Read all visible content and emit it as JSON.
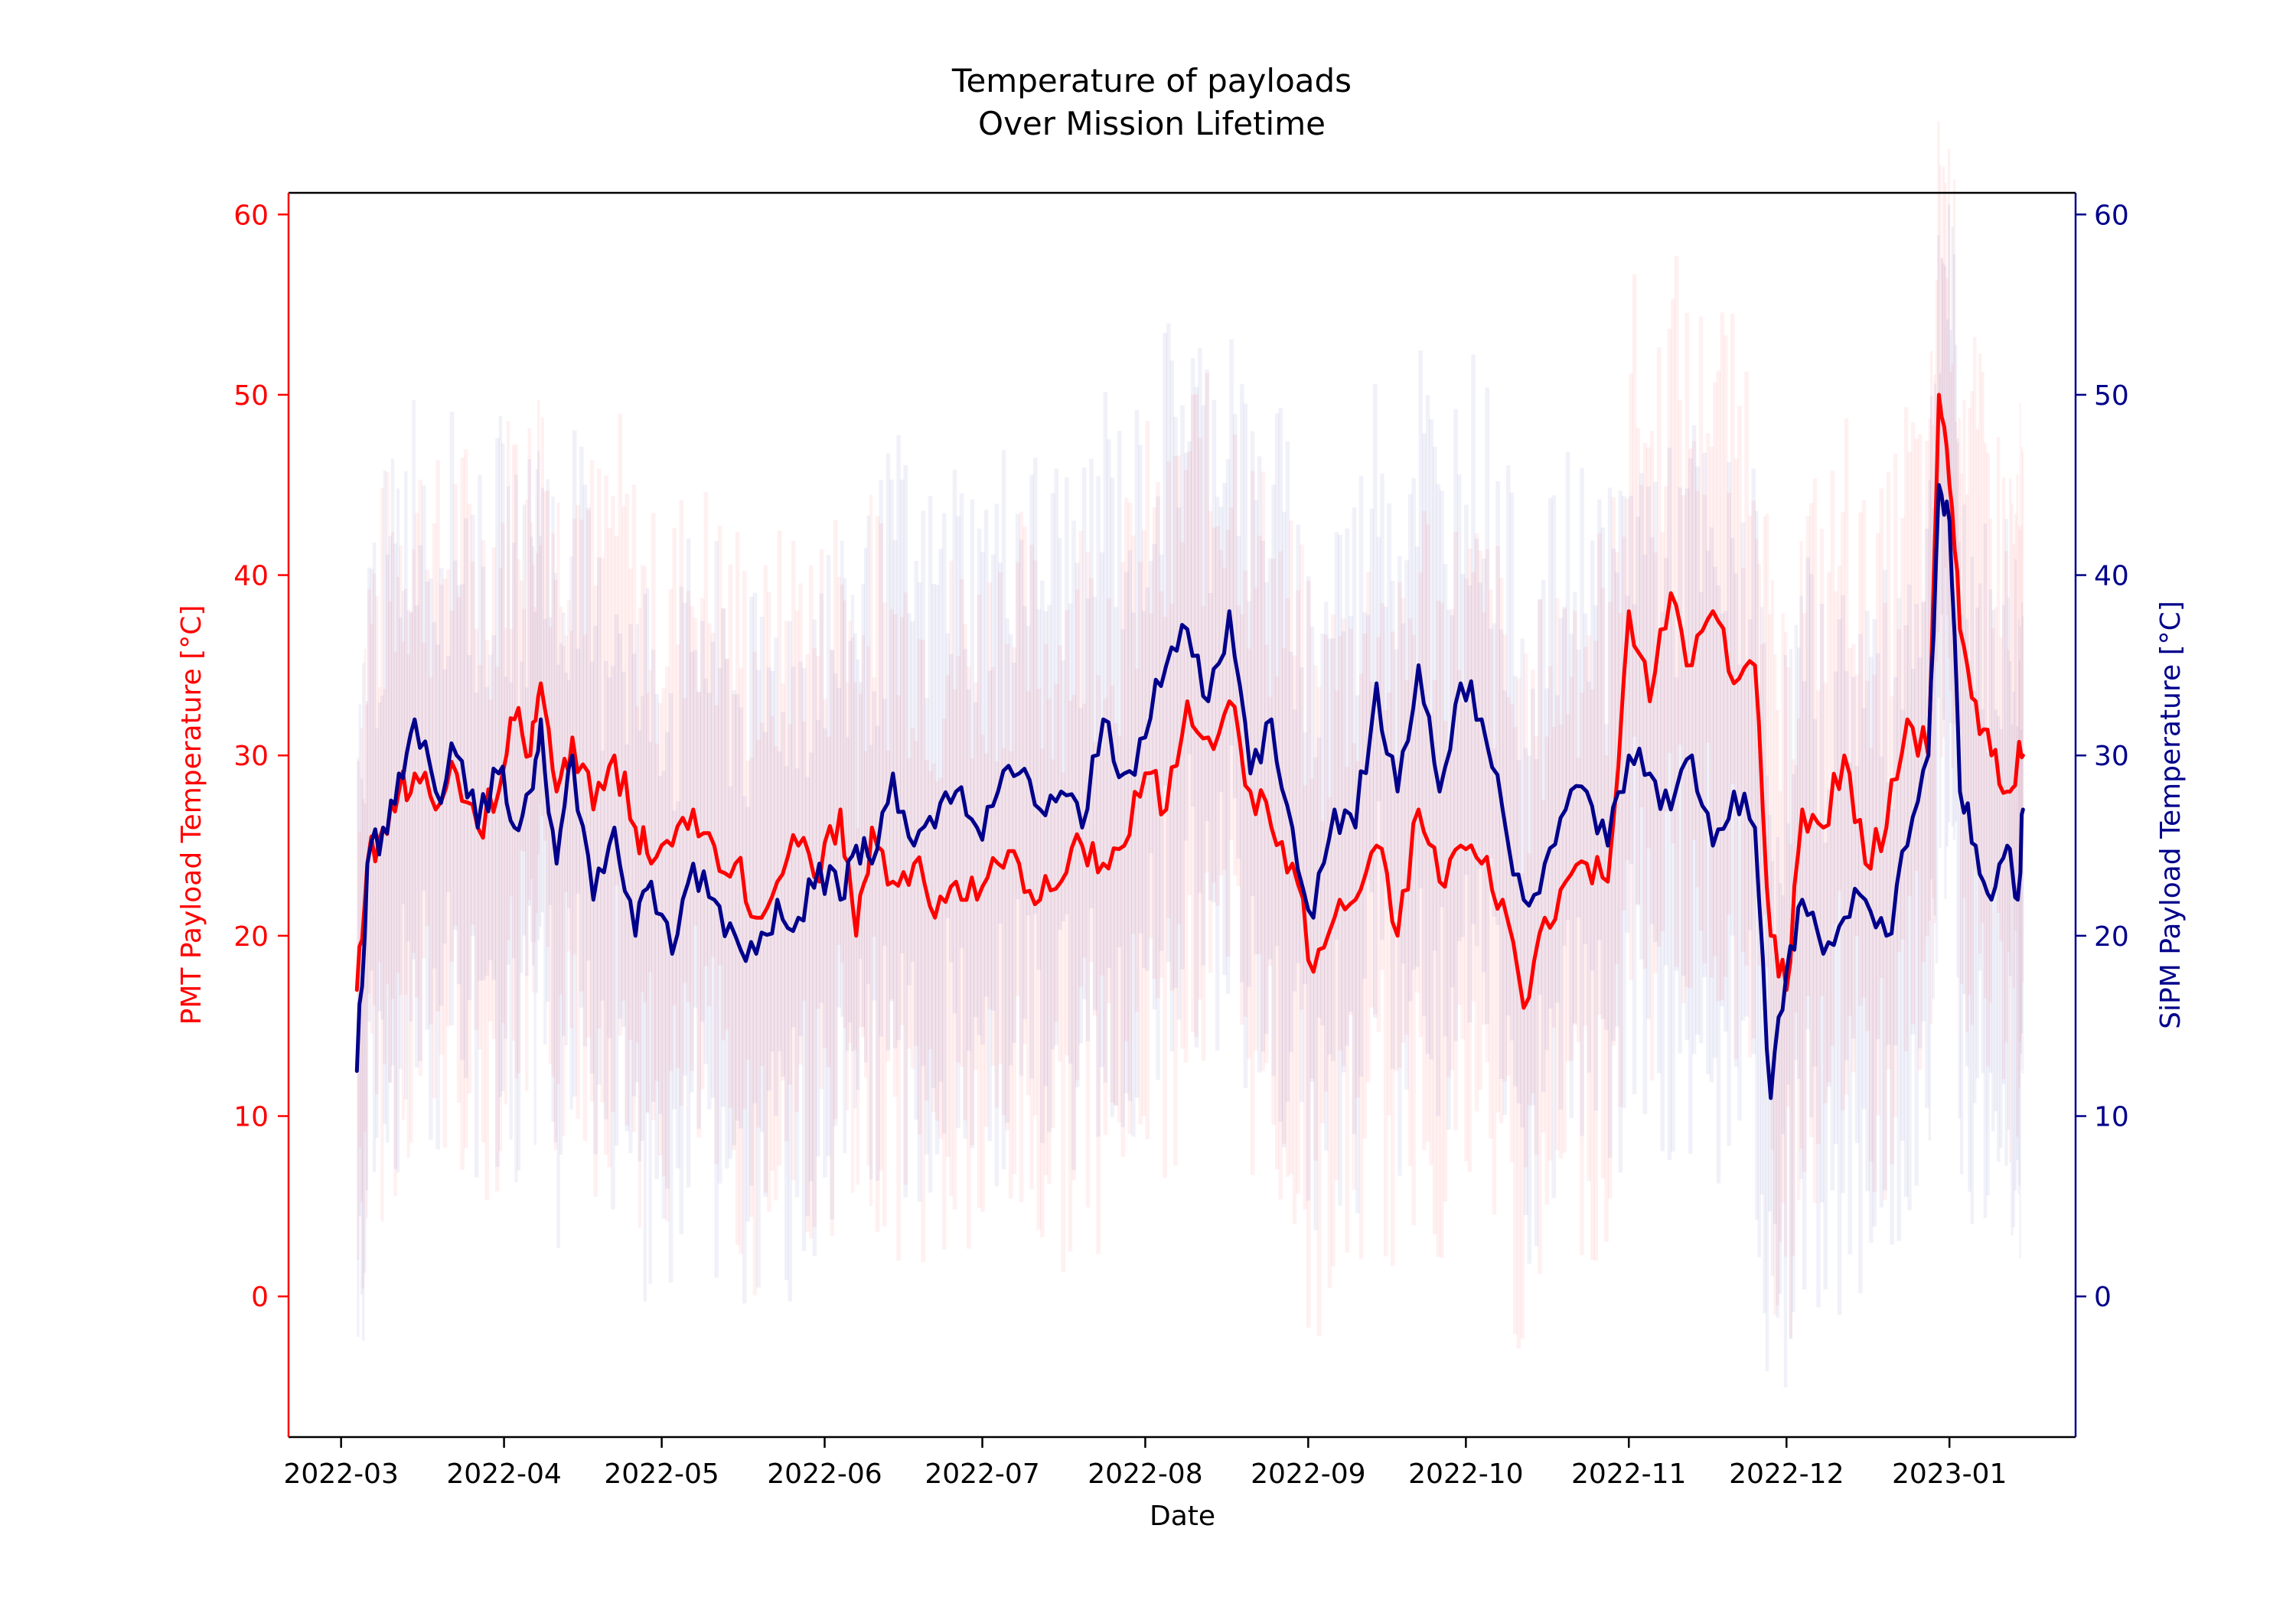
{
  "chart_data": {
    "type": "line",
    "title": "Temperature of payloads",
    "subtitle": "Over Mission Lifetime",
    "xlabel": "Date",
    "ylabel_left": "PMT Payload Temperature [°C]",
    "ylabel_right": "SiPM Payload Temperature [°C]",
    "x_range": [
      "2022-02-19",
      "2023-01-25"
    ],
    "xticks": [
      "2022-03",
      "2022-04",
      "2022-05",
      "2022-06",
      "2022-07",
      "2022-08",
      "2022-09",
      "2022-10",
      "2022-11",
      "2022-12",
      "2023-01"
    ],
    "ylim_left": [
      -7.8,
      61.2
    ],
    "ylim_right": [
      -7.8,
      61.2
    ],
    "yticks_left": [
      0,
      10,
      20,
      30,
      40,
      50,
      60
    ],
    "yticks_right": [
      0,
      10,
      20,
      30,
      40,
      50,
      60
    ],
    "grid": false,
    "legend": "none",
    "series": [
      {
        "axis": "left",
        "color": "#ff0000",
        "x": [
          "2022-03-04",
          "2022-03-06",
          "2022-03-09",
          "2022-03-12",
          "2022-03-15",
          "2022-03-19",
          "2022-03-23",
          "2022-03-27",
          "2022-03-31",
          "2022-04-03",
          "2022-04-06",
          "2022-04-08",
          "2022-04-11",
          "2022-04-14",
          "2022-04-18",
          "2022-04-22",
          "2022-04-26",
          "2022-04-29",
          "2022-05-03",
          "2022-05-07",
          "2022-05-11",
          "2022-05-15",
          "2022-05-19",
          "2022-05-23",
          "2022-05-27",
          "2022-05-31",
          "2022-06-04",
          "2022-06-07",
          "2022-06-10",
          "2022-06-14",
          "2022-06-18",
          "2022-06-22",
          "2022-06-26",
          "2022-06-30",
          "2022-07-04",
          "2022-07-08",
          "2022-07-12",
          "2022-07-16",
          "2022-07-20",
          "2022-07-24",
          "2022-07-28",
          "2022-08-01",
          "2022-08-05",
          "2022-08-09",
          "2022-08-13",
          "2022-08-17",
          "2022-08-21",
          "2022-08-25",
          "2022-08-29",
          "2022-09-02",
          "2022-09-06",
          "2022-09-10",
          "2022-09-14",
          "2022-09-18",
          "2022-09-22",
          "2022-09-26",
          "2022-09-30",
          "2022-10-04",
          "2022-10-08",
          "2022-10-12",
          "2022-10-16",
          "2022-10-20",
          "2022-10-24",
          "2022-10-28",
          "2022-11-01",
          "2022-11-05",
          "2022-11-09",
          "2022-11-13",
          "2022-11-17",
          "2022-11-21",
          "2022-11-25",
          "2022-11-28",
          "2022-12-01",
          "2022-12-04",
          "2022-12-08",
          "2022-12-12",
          "2022-12-16",
          "2022-12-20",
          "2022-12-24",
          "2022-12-28",
          "2022-12-30",
          "2023-01-01",
          "2023-01-03",
          "2023-01-06",
          "2023-01-09",
          "2023-01-12",
          "2023-01-14",
          "2023-01-15"
        ],
        "y": [
          17,
          24,
          26,
          28,
          29,
          27,
          29,
          26,
          28,
          32,
          30,
          34,
          28,
          31,
          27,
          30,
          26,
          24,
          25,
          27,
          25,
          24,
          21,
          23,
          25,
          23,
          27,
          20,
          26,
          23,
          24,
          21,
          23,
          22,
          24,
          24,
          22,
          23,
          25,
          24,
          25,
          29,
          27,
          33,
          31,
          33,
          28,
          26,
          24,
          18,
          21,
          22,
          25,
          20,
          27,
          23,
          25,
          24,
          22,
          16,
          21,
          23,
          24,
          23,
          38,
          33,
          39,
          35,
          38,
          34,
          35,
          20,
          17,
          27,
          26,
          30,
          24,
          26,
          32,
          30,
          50,
          45,
          37,
          33,
          30,
          28,
          30,
          30
        ]
      },
      {
        "axis": "right",
        "color": "#00008b",
        "x": [
          "2022-03-04",
          "2022-03-06",
          "2022-03-09",
          "2022-03-12",
          "2022-03-15",
          "2022-03-19",
          "2022-03-23",
          "2022-03-27",
          "2022-03-31",
          "2022-04-03",
          "2022-04-06",
          "2022-04-08",
          "2022-04-11",
          "2022-04-14",
          "2022-04-18",
          "2022-04-22",
          "2022-04-26",
          "2022-04-29",
          "2022-05-03",
          "2022-05-07",
          "2022-05-11",
          "2022-05-15",
          "2022-05-19",
          "2022-05-23",
          "2022-05-27",
          "2022-05-31",
          "2022-06-04",
          "2022-06-07",
          "2022-06-10",
          "2022-06-14",
          "2022-06-18",
          "2022-06-22",
          "2022-06-26",
          "2022-06-30",
          "2022-07-04",
          "2022-07-08",
          "2022-07-12",
          "2022-07-16",
          "2022-07-20",
          "2022-07-24",
          "2022-07-28",
          "2022-08-01",
          "2022-08-05",
          "2022-08-09",
          "2022-08-13",
          "2022-08-17",
          "2022-08-21",
          "2022-08-25",
          "2022-08-29",
          "2022-09-02",
          "2022-09-06",
          "2022-09-10",
          "2022-09-14",
          "2022-09-18",
          "2022-09-22",
          "2022-09-26",
          "2022-09-30",
          "2022-10-04",
          "2022-10-08",
          "2022-10-12",
          "2022-10-16",
          "2022-10-20",
          "2022-10-24",
          "2022-10-28",
          "2022-11-01",
          "2022-11-05",
          "2022-11-09",
          "2022-11-13",
          "2022-11-17",
          "2022-11-21",
          "2022-11-25",
          "2022-11-28",
          "2022-12-01",
          "2022-12-04",
          "2022-12-08",
          "2022-12-12",
          "2022-12-16",
          "2022-12-20",
          "2022-12-24",
          "2022-12-28",
          "2022-12-30",
          "2023-01-01",
          "2023-01-03",
          "2023-01-06",
          "2023-01-09",
          "2023-01-12",
          "2023-01-14",
          "2023-01-15"
        ],
        "y": [
          12.5,
          24,
          26,
          29,
          32,
          28,
          30,
          26,
          29,
          26,
          28,
          32,
          24,
          30,
          22,
          26,
          20,
          23,
          19,
          24,
          22,
          20,
          19,
          22,
          21,
          24,
          22,
          25,
          24,
          29,
          25,
          26,
          28,
          26,
          28,
          29,
          27,
          28,
          26,
          32,
          29,
          31,
          35,
          37,
          33,
          38,
          29,
          32,
          26,
          21,
          27,
          26,
          34,
          28,
          35,
          28,
          34,
          32,
          27,
          22,
          24,
          27,
          28,
          25,
          30,
          29,
          27,
          30,
          25,
          28,
          26,
          11,
          18,
          22,
          19,
          21,
          22,
          20,
          25,
          30,
          45,
          43,
          28,
          25,
          22,
          25,
          22,
          27
        ]
      }
    ]
  }
}
